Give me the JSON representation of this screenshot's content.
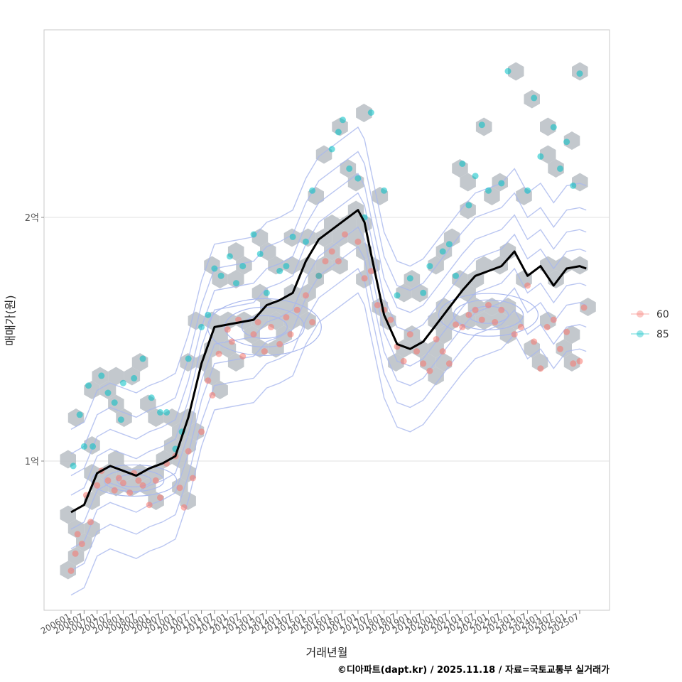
{
  "chart_data": {
    "type": "scatter",
    "xlabel": "거래년월",
    "ylabel": "매매가(원)",
    "y_ticks": [
      {
        "value": 1.0,
        "label": "1억"
      },
      {
        "value": 2.0,
        "label": "2억"
      }
    ],
    "ylim": [
      0.4,
      2.8
    ],
    "x_range": [
      "2005-09",
      "2026-03"
    ],
    "x_ticks": [
      "200601",
      "200607",
      "200701",
      "200707",
      "200801",
      "200807",
      "200901",
      "200907",
      "201001",
      "201007",
      "201101",
      "201107",
      "201201",
      "201207",
      "201301",
      "201307",
      "201401",
      "201407",
      "201501",
      "201507",
      "201601",
      "201607",
      "201701",
      "201707",
      "201801",
      "201807",
      "201901",
      "201907",
      "202001",
      "202007",
      "202101",
      "202107",
      "202201",
      "202207",
      "202301",
      "202307",
      "202401",
      "202407",
      "202501",
      "202507"
    ],
    "legend": {
      "position": "right",
      "entries": [
        {
          "name": "60",
          "color": "#F8766D"
        },
        {
          "name": "85",
          "color": "#00BFC4"
        }
      ]
    },
    "caption": "©디아파트(dapt.kr) / 2025.11.18 / 자료=국토교통부 실거래가",
    "colors": {
      "hex": "#b8bec4",
      "contour": "#a9b8ee",
      "trend": "#000000",
      "s60": "#F8766D",
      "s85": "#00BFC4"
    },
    "trend_line": {
      "x": [
        "2006-01",
        "2006-07",
        "2007-01",
        "2007-07",
        "2008-01",
        "2008-07",
        "2009-01",
        "2009-07",
        "2010-01",
        "2010-07",
        "2011-01",
        "2011-07",
        "2012-01",
        "2012-07",
        "2013-01",
        "2013-07",
        "2014-01",
        "2014-07",
        "2015-01",
        "2015-07",
        "2016-01",
        "2016-07",
        "2017-01",
        "2017-04",
        "2017-07",
        "2018-01",
        "2018-07",
        "2019-01",
        "2019-07",
        "2020-01",
        "2020-07",
        "2021-01",
        "2021-07",
        "2022-01",
        "2022-07",
        "2023-01",
        "2023-07",
        "2024-01",
        "2024-07",
        "2025-01",
        "2025-07",
        "2025-10"
      ],
      "y": [
        0.79,
        0.82,
        0.95,
        0.98,
        0.96,
        0.94,
        0.97,
        0.99,
        1.02,
        1.18,
        1.4,
        1.55,
        1.56,
        1.57,
        1.58,
        1.64,
        1.66,
        1.69,
        1.82,
        1.91,
        1.95,
        1.99,
        2.03,
        1.98,
        1.85,
        1.6,
        1.48,
        1.46,
        1.49,
        1.56,
        1.63,
        1.7,
        1.76,
        1.78,
        1.8,
        1.86,
        1.76,
        1.8,
        1.72,
        1.79,
        1.8,
        1.79
      ]
    },
    "series": [
      {
        "name": "60",
        "points": [
          [
            "2006-01",
            0.55
          ],
          [
            "2006-03",
            0.62
          ],
          [
            "2006-04",
            0.7
          ],
          [
            "2006-06",
            0.66
          ],
          [
            "2006-08",
            0.86
          ],
          [
            "2006-10",
            0.75
          ],
          [
            "2007-01",
            0.9
          ],
          [
            "2007-03",
            0.96
          ],
          [
            "2007-06",
            0.92
          ],
          [
            "2007-09",
            0.88
          ],
          [
            "2007-11",
            0.93
          ],
          [
            "2008-01",
            0.91
          ],
          [
            "2008-04",
            0.87
          ],
          [
            "2008-06",
            0.95
          ],
          [
            "2008-08",
            0.92
          ],
          [
            "2008-10",
            0.9
          ],
          [
            "2009-01",
            0.82
          ],
          [
            "2009-04",
            0.92
          ],
          [
            "2009-06",
            0.85
          ],
          [
            "2009-09",
            0.99
          ],
          [
            "2010-01",
            1.02
          ],
          [
            "2010-03",
            0.89
          ],
          [
            "2010-05",
            0.81
          ],
          [
            "2010-07",
            1.04
          ],
          [
            "2010-09",
            0.93
          ],
          [
            "2011-01",
            1.12
          ],
          [
            "2011-04",
            1.33
          ],
          [
            "2011-06",
            1.27
          ],
          [
            "2011-09",
            1.44
          ],
          [
            "2012-01",
            1.54
          ],
          [
            "2012-03",
            1.49
          ],
          [
            "2012-06",
            1.58
          ],
          [
            "2012-08",
            1.43
          ],
          [
            "2013-01",
            1.52
          ],
          [
            "2013-03",
            1.57
          ],
          [
            "2013-06",
            1.45
          ],
          [
            "2013-09",
            1.55
          ],
          [
            "2014-01",
            1.48
          ],
          [
            "2014-04",
            1.59
          ],
          [
            "2014-06",
            1.52
          ],
          [
            "2014-09",
            1.62
          ],
          [
            "2015-01",
            1.68
          ],
          [
            "2015-04",
            1.57
          ],
          [
            "2015-07",
            1.76
          ],
          [
            "2015-10",
            1.82
          ],
          [
            "2016-01",
            1.86
          ],
          [
            "2016-04",
            1.82
          ],
          [
            "2016-07",
            1.93
          ],
          [
            "2017-01",
            1.9
          ],
          [
            "2017-04",
            1.75
          ],
          [
            "2017-07",
            1.78
          ],
          [
            "2017-10",
            1.64
          ],
          [
            "2018-01",
            1.62
          ],
          [
            "2018-04",
            1.58
          ],
          [
            "2018-07",
            1.47
          ],
          [
            "2018-10",
            1.41
          ],
          [
            "2019-01",
            1.52
          ],
          [
            "2019-04",
            1.45
          ],
          [
            "2019-07",
            1.4
          ],
          [
            "2019-10",
            1.37
          ],
          [
            "2020-01",
            1.5
          ],
          [
            "2020-04",
            1.45
          ],
          [
            "2020-07",
            1.4
          ],
          [
            "2020-10",
            1.56
          ],
          [
            "2021-01",
            1.55
          ],
          [
            "2021-04",
            1.6
          ],
          [
            "2021-07",
            1.62
          ],
          [
            "2021-10",
            1.58
          ],
          [
            "2022-01",
            1.64
          ],
          [
            "2022-04",
            1.57
          ],
          [
            "2022-07",
            1.62
          ],
          [
            "2023-01",
            1.52
          ],
          [
            "2023-04",
            1.55
          ],
          [
            "2023-07",
            1.72
          ],
          [
            "2023-10",
            1.49
          ],
          [
            "2024-01",
            1.38
          ],
          [
            "2024-04",
            1.55
          ],
          [
            "2024-07",
            1.58
          ],
          [
            "2024-10",
            1.46
          ],
          [
            "2025-01",
            1.53
          ],
          [
            "2025-04",
            1.4
          ],
          [
            "2025-07",
            1.41
          ],
          [
            "2025-09",
            1.63
          ]
        ]
      },
      {
        "name": "85",
        "points": [
          [
            "2006-02",
            0.98
          ],
          [
            "2006-05",
            1.19
          ],
          [
            "2006-07",
            1.06
          ],
          [
            "2006-09",
            1.31
          ],
          [
            "2006-11",
            1.06
          ],
          [
            "2007-03",
            1.35
          ],
          [
            "2007-06",
            1.28
          ],
          [
            "2007-09",
            1.24
          ],
          [
            "2007-12",
            1.17
          ],
          [
            "2008-01",
            1.32
          ],
          [
            "2008-06",
            1.34
          ],
          [
            "2008-10",
            1.42
          ],
          [
            "2009-02",
            1.26
          ],
          [
            "2009-06",
            1.2
          ],
          [
            "2009-09",
            1.2
          ],
          [
            "2010-01",
            1.05
          ],
          [
            "2010-04",
            1.12
          ],
          [
            "2010-07",
            1.42
          ],
          [
            "2011-01",
            1.55
          ],
          [
            "2011-04",
            1.6
          ],
          [
            "2011-07",
            1.79
          ],
          [
            "2011-10",
            1.76
          ],
          [
            "2012-02",
            1.84
          ],
          [
            "2012-05",
            1.73
          ],
          [
            "2012-08",
            1.8
          ],
          [
            "2013-01",
            1.93
          ],
          [
            "2013-04",
            1.85
          ],
          [
            "2013-07",
            1.69
          ],
          [
            "2014-01",
            1.78
          ],
          [
            "2014-04",
            1.8
          ],
          [
            "2014-07",
            1.92
          ],
          [
            "2015-01",
            1.9
          ],
          [
            "2015-04",
            2.11
          ],
          [
            "2015-07",
            1.76
          ],
          [
            "2016-01",
            2.28
          ],
          [
            "2016-04",
            2.35
          ],
          [
            "2016-06",
            2.4
          ],
          [
            "2016-09",
            2.2
          ],
          [
            "2017-01",
            2.16
          ],
          [
            "2017-04",
            2.0
          ],
          [
            "2017-07",
            2.43
          ],
          [
            "2018-01",
            2.11
          ],
          [
            "2018-07",
            1.68
          ],
          [
            "2019-01",
            1.75
          ],
          [
            "2019-07",
            1.69
          ],
          [
            "2019-10",
            1.8
          ],
          [
            "2020-04",
            1.86
          ],
          [
            "2020-07",
            1.89
          ],
          [
            "2020-10",
            1.76
          ],
          [
            "2021-01",
            2.22
          ],
          [
            "2021-04",
            2.05
          ],
          [
            "2021-07",
            2.17
          ],
          [
            "2021-10",
            2.38
          ],
          [
            "2022-01",
            2.11
          ],
          [
            "2022-07",
            2.14
          ],
          [
            "2022-10",
            2.6
          ],
          [
            "2023-07",
            2.11
          ],
          [
            "2023-10",
            2.49
          ],
          [
            "2024-01",
            2.25
          ],
          [
            "2024-07",
            2.37
          ],
          [
            "2024-10",
            2.2
          ],
          [
            "2025-01",
            2.31
          ],
          [
            "2025-04",
            2.13
          ],
          [
            "2025-07",
            2.59
          ]
        ]
      }
    ]
  }
}
